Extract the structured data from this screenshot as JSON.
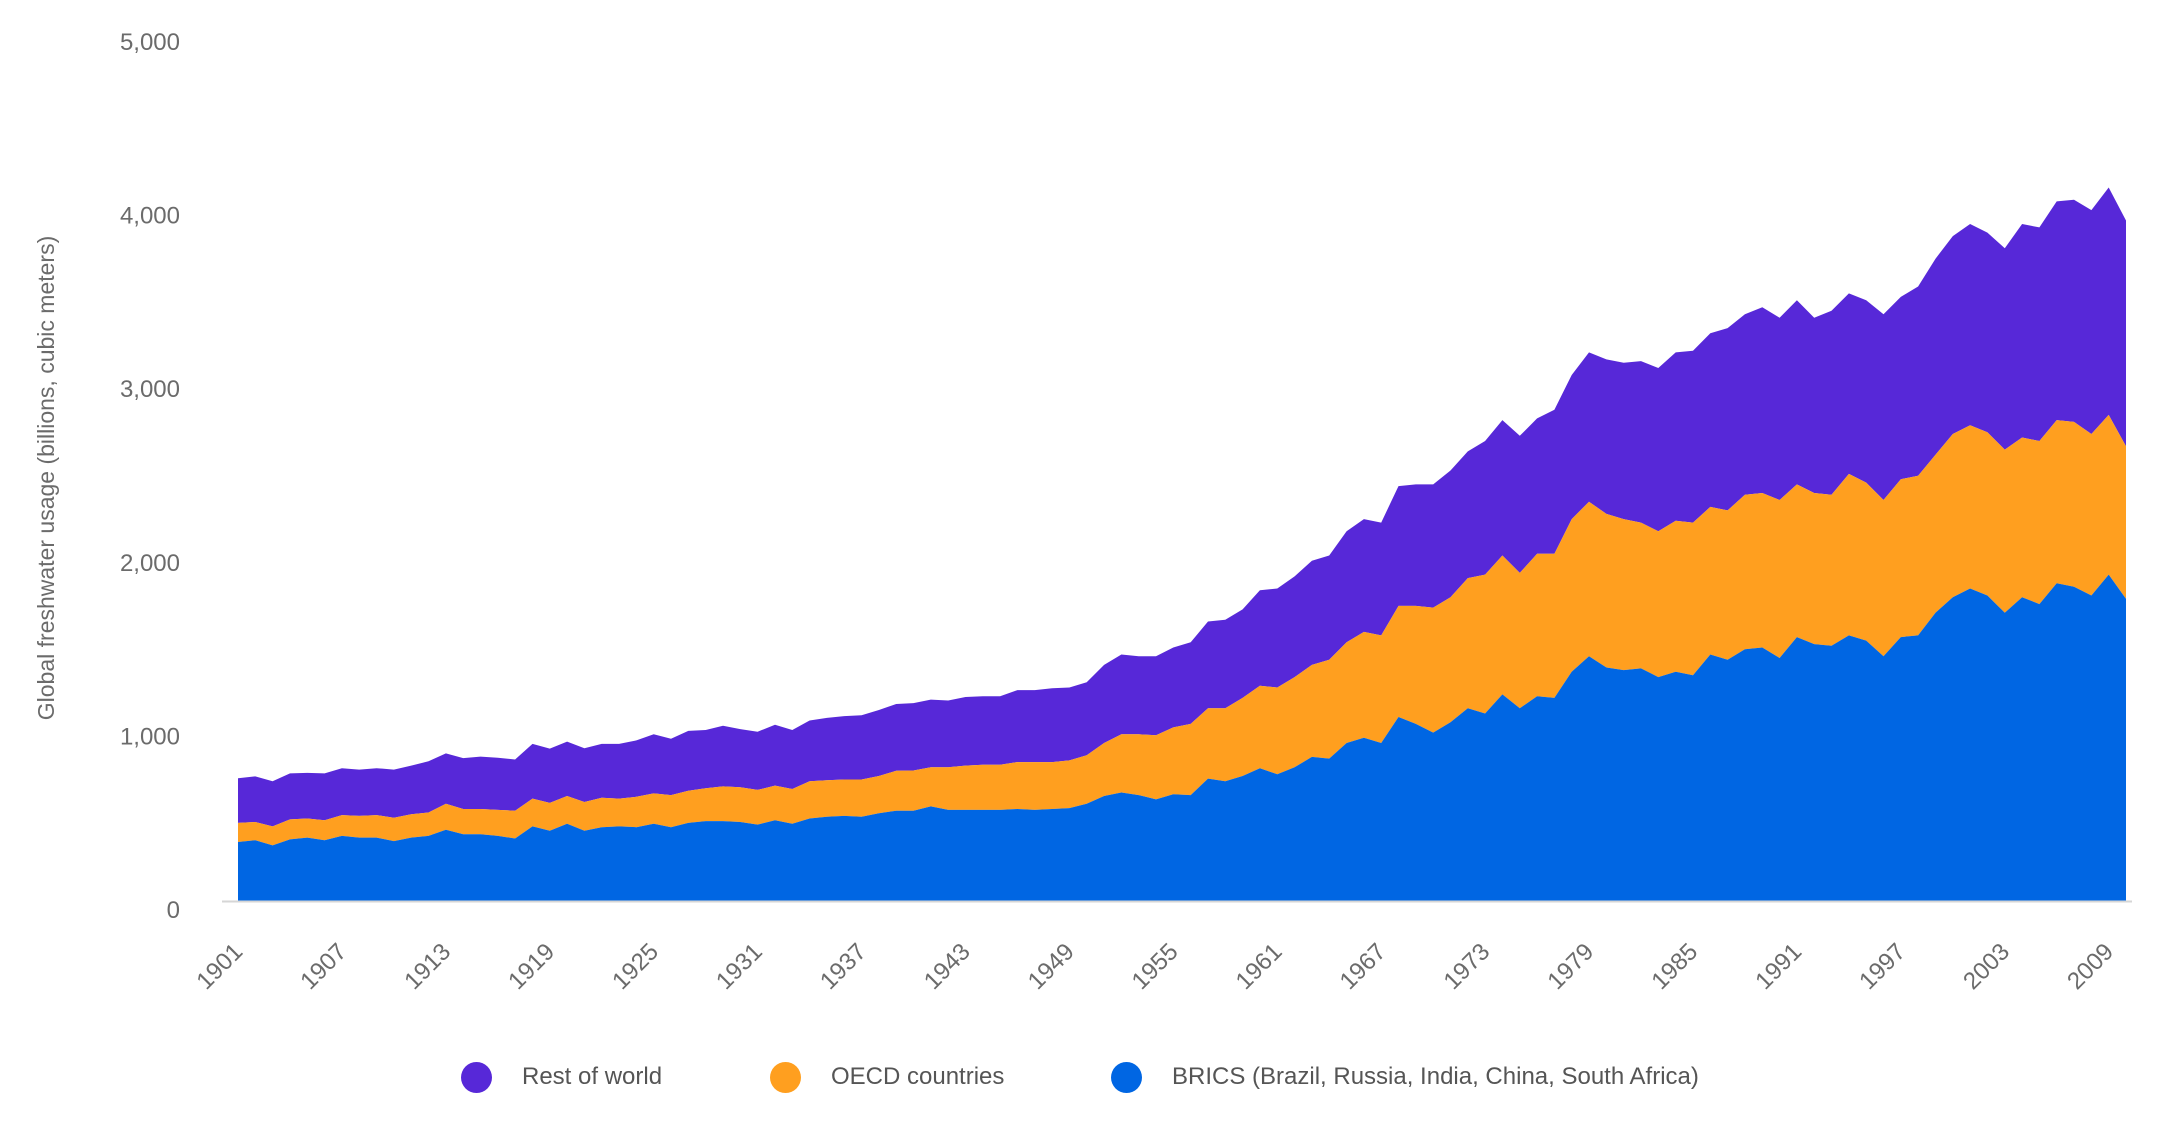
{
  "chart_data": {
    "type": "area",
    "stacked": true,
    "title": "",
    "xlabel": "",
    "ylabel": "Global freshwater usage (billions, cubic meters)",
    "ylim": [
      0,
      5000
    ],
    "yticks": [
      "0",
      "1,000",
      "2,000",
      "3,000",
      "4,000",
      "5,000"
    ],
    "ytick_values": [
      0,
      1000,
      2000,
      3000,
      4000,
      5000
    ],
    "xlim": [
      1901,
      2010
    ],
    "xticks": [
      "1901",
      "1907",
      "1913",
      "1919",
      "1925",
      "1931",
      "1937",
      "1943",
      "1949",
      "1955",
      "1961",
      "1967",
      "1973",
      "1979",
      "1985",
      "1991",
      "1997",
      "2003",
      "2009"
    ],
    "grid": false,
    "legend_position": "bottom",
    "x_start": 1901,
    "series": [
      {
        "name": "BRICS (Brazil, Russia, India, China, South Africa)",
        "color": "#0066e3",
        "values": [
          340,
          350,
          320,
          355,
          365,
          350,
          375,
          365,
          365,
          345,
          365,
          375,
          410,
          385,
          385,
          375,
          360,
          430,
          405,
          445,
          405,
          425,
          430,
          425,
          445,
          425,
          450,
          460,
          460,
          455,
          440,
          465,
          445,
          475,
          485,
          490,
          485,
          505,
          520,
          520,
          545,
          525,
          525,
          525,
          525,
          530,
          525,
          530,
          535,
          560,
          605,
          625,
          610,
          585,
          615,
          610,
          705,
          690,
          720,
          765,
          730,
          770,
          830,
          820,
          910,
          940,
          910,
          1060,
          1020,
          970,
          1030,
          1110,
          1080,
          1190,
          1110,
          1180,
          1170,
          1320,
          1410,
          1345,
          1330,
          1340,
          1290,
          1320,
          1300,
          1420,
          1390,
          1450,
          1460,
          1400,
          1520,
          1480,
          1470,
          1530,
          1500,
          1410,
          1520,
          1530,
          1660,
          1750,
          1800,
          1760,
          1660,
          1750,
          1710,
          1830,
          1810,
          1760,
          1880,
          1740
        ]
      },
      {
        "name": "OECD countries",
        "color": "#ff9f1f",
        "values": [
          110,
          105,
          110,
          115,
          110,
          115,
          120,
          125,
          130,
          135,
          135,
          135,
          150,
          145,
          145,
          150,
          160,
          160,
          160,
          160,
          165,
          170,
          160,
          175,
          175,
          185,
          185,
          190,
          200,
          200,
          200,
          200,
          200,
          215,
          210,
          210,
          215,
          215,
          230,
          232,
          225,
          245,
          255,
          260,
          260,
          270,
          275,
          270,
          275,
          280,
          305,
          335,
          350,
          370,
          385,
          410,
          405,
          420,
          450,
          475,
          500,
          520,
          530,
          570,
          580,
          610,
          620,
          640,
          680,
          720,
          720,
          750,
          800,
          800,
          780,
          820,
          830,
          880,
          890,
          885,
          870,
          840,
          840,
          870,
          880,
          850,
          860,
          890,
          890,
          910,
          880,
          870,
          870,
          930,
          910,
          900,
          910,
          920,
          910,
          940,
          940,
          940,
          940,
          920,
          940,
          940,
          950,
          930,
          920,
          880
        ]
      },
      {
        "name": "Rest of world",
        "color": "#5728d8",
        "values": [
          257,
          263,
          260,
          265,
          263,
          270,
          270,
          267,
          270,
          277,
          280,
          295,
          290,
          293,
          302,
          300,
          295,
          315,
          313,
          313,
          310,
          310,
          315,
          325,
          340,
          325,
          345,
          335,
          350,
          335,
          335,
          350,
          340,
          350,
          360,
          365,
          370,
          380,
          385,
          388,
          390,
          385,
          395,
          395,
          395,
          415,
          415,
          425,
          420,
          420,
          450,
          460,
          450,
          455,
          460,
          470,
          500,
          510,
          510,
          550,
          570,
          580,
          600,
          600,
          640,
          650,
          650,
          690,
          700,
          710,
          730,
          730,
          770,
          780,
          790,
          780,
          830,
          830,
          860,
          890,
          900,
          930,
          940,
          970,
          990,
          1000,
          1050,
          1040,
          1070,
          1050,
          1060,
          1010,
          1060,
          1040,
          1050,
          1070,
          1050,
          1090,
          1130,
          1140,
          1160,
          1150,
          1160,
          1230,
          1230,
          1260,
          1280,
          1290,
          1310,
          1300
        ]
      }
    ],
    "legend": [
      {
        "label": "Rest of world",
        "color": "#5728d8"
      },
      {
        "label": "OECD countries",
        "color": "#ff9f1f"
      },
      {
        "label": "BRICS (Brazil, Russia, India, China, South Africa)",
        "color": "#0066e3"
      }
    ]
  }
}
